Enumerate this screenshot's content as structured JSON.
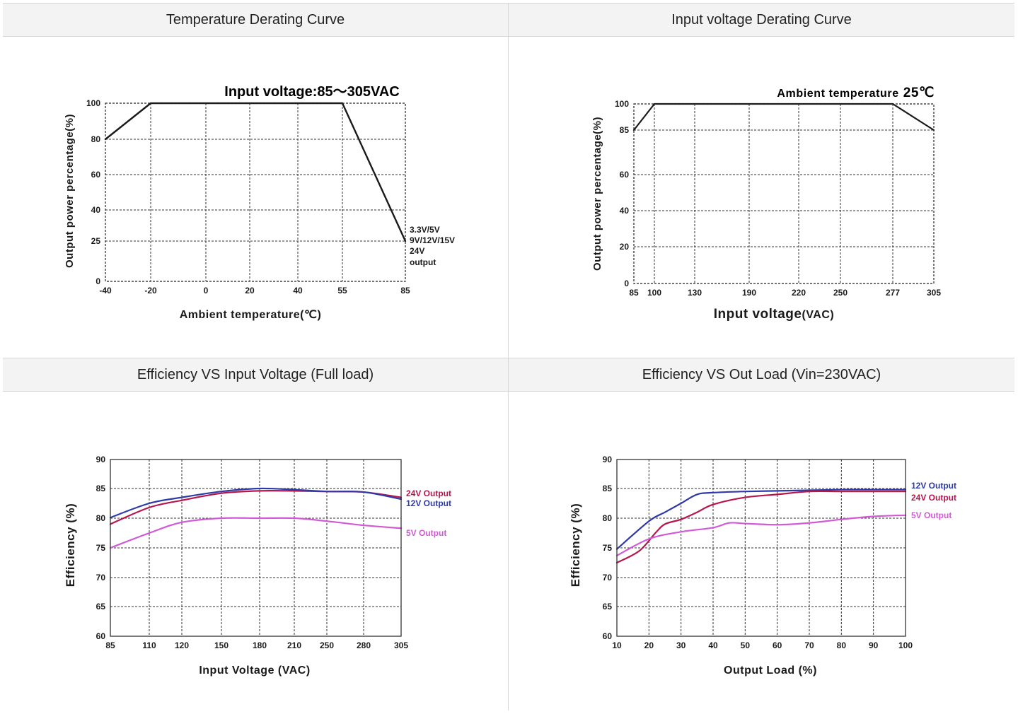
{
  "panels": {
    "p1": {
      "header": "Temperature Derating Curve"
    },
    "p2": {
      "header": "Input voltage Derating Curve"
    },
    "p3": {
      "header": "Efficiency VS Input Voltage (Full load)"
    },
    "p4": {
      "header": "Efficiency VS Out Load (Vin=230VAC)"
    }
  },
  "chart_data": [
    {
      "type": "line",
      "title": "Input voltage:85～305VAC",
      "xlabel": "Ambient temperature(℃)",
      "ylabel": "Output power percentage(%)",
      "x_ticks": [
        -40,
        -20,
        0,
        20,
        40,
        55,
        85
      ],
      "y_ticks": [
        0,
        25,
        40,
        60,
        80,
        100
      ],
      "series": [
        {
          "x": [
            -40,
            -20,
            55,
            85
          ],
          "y": [
            80,
            100,
            100,
            25
          ]
        }
      ],
      "annotation": [
        "3.3V/5V",
        "9V/12V/15V",
        "24V",
        "output"
      ],
      "grid": true
    },
    {
      "type": "line",
      "title": "Ambient temperature",
      "title_value": "25℃",
      "xlabel": "Input voltage",
      "xlabel_unit": "(VAC)",
      "ylabel": "Output power percentage(%)",
      "x_ticks": [
        85,
        100,
        130,
        190,
        220,
        250,
        277,
        305
      ],
      "y_ticks": [
        0,
        20,
        40,
        60,
        85,
        100
      ],
      "series": [
        {
          "x": [
            85,
            100,
            277,
            305
          ],
          "y": [
            85,
            100,
            100,
            85
          ]
        }
      ],
      "grid": true
    },
    {
      "type": "line",
      "xlabel": "Input Voltage (VAC)",
      "ylabel": "Efficiency (%)",
      "x_ticks": [
        85,
        110,
        120,
        150,
        180,
        210,
        250,
        280,
        305
      ],
      "y_ticks": [
        60,
        65,
        70,
        75,
        80,
        85,
        90
      ],
      "ylim": [
        60,
        90
      ],
      "series": [
        {
          "name": "24V Output",
          "color": "#b5174d",
          "x": [
            85,
            110,
            120,
            150,
            180,
            210,
            250,
            280,
            305
          ],
          "y": [
            79.0,
            81.8,
            83.0,
            84.2,
            84.6,
            84.6,
            84.5,
            84.4,
            83.5
          ]
        },
        {
          "name": "12V Output",
          "color": "#2e3aa8",
          "x": [
            85,
            110,
            120,
            150,
            180,
            210,
            250,
            280,
            305
          ],
          "y": [
            80.1,
            82.5,
            83.5,
            84.5,
            85.0,
            84.8,
            84.5,
            84.4,
            83.2
          ]
        },
        {
          "name": "5V Output",
          "color": "#d15ad6",
          "x": [
            85,
            110,
            120,
            150,
            180,
            210,
            250,
            280,
            305
          ],
          "y": [
            75.0,
            77.5,
            79.3,
            80.0,
            80.0,
            80.0,
            79.5,
            78.8,
            78.3
          ]
        }
      ],
      "grid": true
    },
    {
      "type": "line",
      "xlabel": "Output Load (%)",
      "ylabel": "Efficiency (%)",
      "x_ticks": [
        10,
        20,
        30,
        40,
        50,
        60,
        70,
        80,
        90,
        100
      ],
      "y_ticks": [
        60,
        65,
        70,
        75,
        80,
        85,
        90
      ],
      "xlim": [
        10,
        100
      ],
      "ylim": [
        60,
        90
      ],
      "series": [
        {
          "name": "12V Output",
          "color": "#2e3aa8",
          "x": [
            10,
            20,
            25,
            30,
            35,
            40,
            50,
            60,
            70,
            80,
            90,
            100
          ],
          "y": [
            74.8,
            79.5,
            81.0,
            82.5,
            84.0,
            84.3,
            84.5,
            84.6,
            84.7,
            84.8,
            84.8,
            84.8
          ]
        },
        {
          "name": "24V Output",
          "color": "#b5174d",
          "x": [
            10,
            17,
            22,
            25,
            30,
            35,
            40,
            50,
            60,
            70,
            80,
            90,
            100
          ],
          "y": [
            72.5,
            74.5,
            77.5,
            79.0,
            79.8,
            81.0,
            82.3,
            83.5,
            84.0,
            84.5,
            84.5,
            84.5,
            84.5
          ]
        },
        {
          "name": "5V Output",
          "color": "#d15ad6",
          "x": [
            10,
            20,
            30,
            40,
            45,
            50,
            60,
            70,
            80,
            90,
            100
          ],
          "y": [
            73.7,
            76.5,
            77.7,
            78.4,
            79.2,
            79.1,
            78.9,
            79.2,
            79.8,
            80.3,
            80.5
          ]
        }
      ],
      "grid": true
    }
  ]
}
